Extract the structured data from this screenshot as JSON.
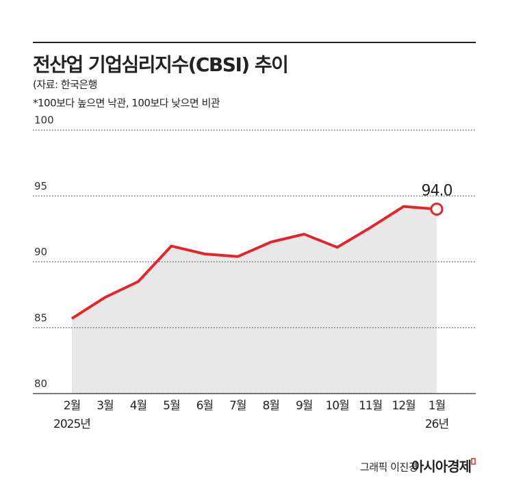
{
  "chart_data": {
    "type": "line",
    "title": "전산업 기업심리지수(CBSI) 추이",
    "source": "(자료: 한국은행",
    "note": "*100보다 높으면 낙관, 100보다 낮으면 비관",
    "categories": [
      "2월",
      "3월",
      "4월",
      "5월",
      "6월",
      "7월",
      "8월",
      "9월",
      "10월",
      "11월",
      "12월",
      "1월"
    ],
    "x_sublabels": [
      "2025년",
      null,
      null,
      null,
      null,
      null,
      null,
      null,
      null,
      null,
      null,
      "26년"
    ],
    "series": [
      {
        "name": "CBSI",
        "color": "#e0262b",
        "values": [
          85.7,
          87.3,
          88.5,
          91.2,
          90.6,
          90.4,
          91.5,
          92.1,
          91.1,
          92.6,
          94.2,
          94.0
        ],
        "value_labels": [
          null,
          null,
          null,
          null,
          null,
          null,
          null,
          null,
          null,
          null,
          null,
          "94.0"
        ]
      }
    ],
    "ylim": [
      80,
      100
    ],
    "yticks": [
      80,
      85,
      90,
      95,
      100
    ],
    "grid": true,
    "area_color": "#e8e8e8",
    "credit": "그래픽 이진경",
    "brand": "아시아경제"
  }
}
